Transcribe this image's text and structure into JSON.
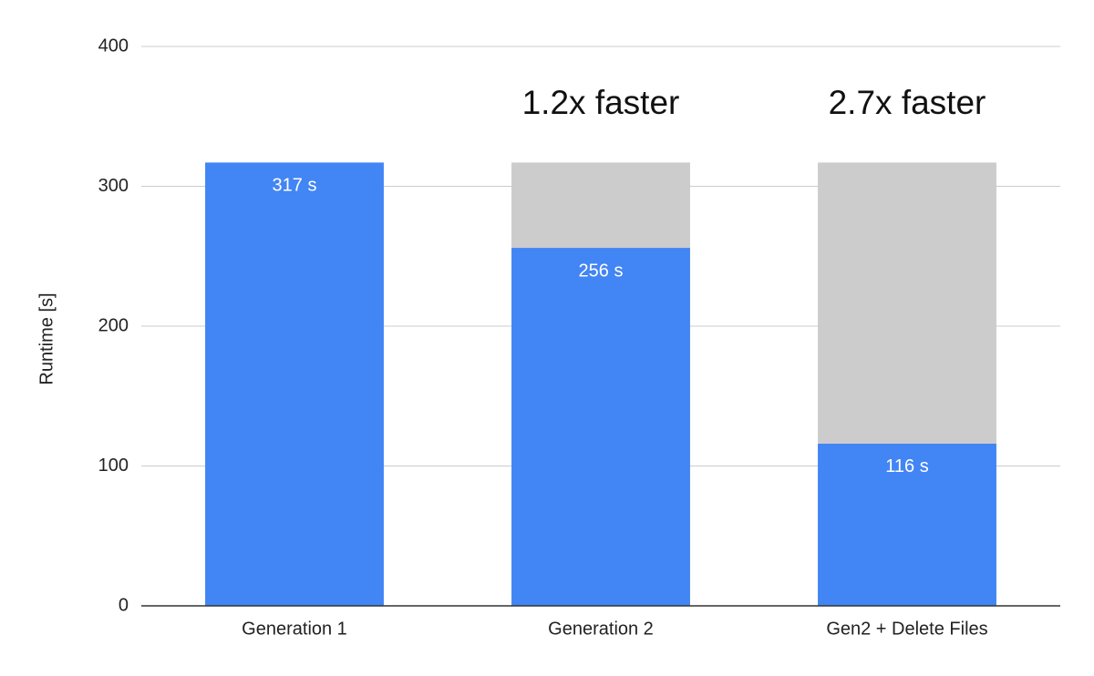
{
  "chart_data": {
    "type": "stacked-bar",
    "y_label": "Runtime [s]",
    "categories": [
      "Generation 1",
      "Generation 2",
      "Gen2 + Delete Files"
    ],
    "series": [
      {
        "color": "#4285f4",
        "values": [
          317,
          256,
          116
        ],
        "value_labels": [
          "317 s",
          "256 s",
          "116 s"
        ]
      },
      {
        "color": "#cccccc",
        "values": [
          null,
          61,
          201
        ]
      }
    ],
    "annotations": [
      null,
      "1.2x faster",
      "2.7x faster"
    ],
    "ylim": [
      0,
      400
    ],
    "yticks": [
      0,
      100,
      200,
      300,
      400
    ],
    "grid": true
  }
}
